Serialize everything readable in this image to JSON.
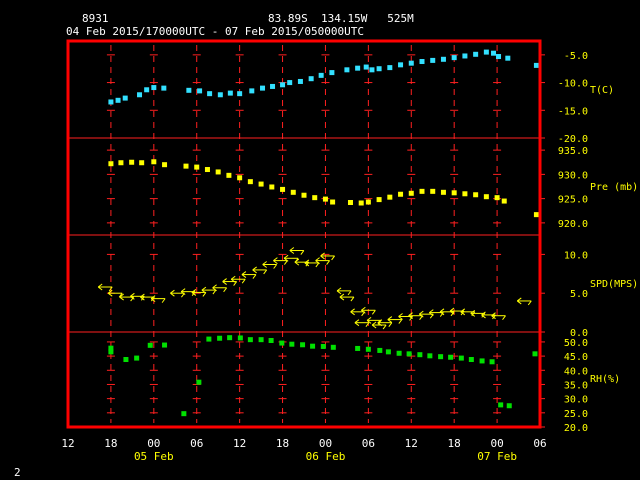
{
  "header": {
    "station_id": "8931",
    "location": "83.89S  134.15W   525M",
    "time_range": "04 Feb 2015/170000UTC - 07 Feb 2015/050000UTC"
  },
  "footer": {
    "page_number": "2"
  },
  "colors": {
    "frame": "#ff0000",
    "grid": "#ff2020",
    "axis_text": "#ffff00",
    "header_text": "#ffffff",
    "temperature": "#33e0ff",
    "pressure": "#ffff00",
    "wind": "#ffff00",
    "rh": "#00e000"
  },
  "chart_data": {
    "type": "scatter",
    "x_axis": {
      "unit": "hours since 05 Feb 00 UTC",
      "range": [
        -12,
        54
      ],
      "tick_hours": [
        -12,
        -6,
        0,
        6,
        12,
        18,
        24,
        30,
        36,
        42,
        48,
        54
      ],
      "tick_labels": [
        "12",
        "18",
        "00",
        "06",
        "12",
        "18",
        "00",
        "06",
        "12",
        "18",
        "00",
        "06"
      ],
      "date_labels": [
        {
          "hour": 0,
          "label": "05 Feb"
        },
        {
          "hour": 24,
          "label": "06 Feb"
        },
        {
          "hour": 48,
          "label": "07 Feb"
        }
      ]
    },
    "panels": [
      {
        "id": "temperature",
        "label": "T(C)",
        "range": [
          -20,
          -2.5
        ],
        "ticks": [
          {
            "v": -5,
            "label": "-5.0"
          },
          {
            "v": -10,
            "label": "-10.0"
          },
          {
            "v": -15,
            "label": "-15.0"
          },
          {
            "v": -20,
            "label": "-20.0"
          }
        ],
        "points": [
          [
            -6,
            -13.5
          ],
          [
            -5,
            -13.2
          ],
          [
            -4,
            -12.8
          ],
          [
            -2,
            -12.2
          ],
          [
            -1,
            -11.3
          ],
          [
            0,
            -10.9
          ],
          [
            1.4,
            -11.0
          ],
          [
            4.9,
            -11.4
          ],
          [
            6.4,
            -11.5
          ],
          [
            7.8,
            -12.0
          ],
          [
            9.3,
            -12.2
          ],
          [
            10.7,
            -11.9
          ],
          [
            12,
            -12.0
          ],
          [
            13.7,
            -11.5
          ],
          [
            15.2,
            -11.0
          ],
          [
            16.6,
            -10.7
          ],
          [
            18,
            -10.4
          ],
          [
            19,
            -10.0
          ],
          [
            20.5,
            -9.8
          ],
          [
            22,
            -9.3
          ],
          [
            23.4,
            -8.7
          ],
          [
            24.9,
            -8.2
          ],
          [
            27,
            -7.7
          ],
          [
            28.5,
            -7.4
          ],
          [
            29.7,
            -7.2
          ],
          [
            30.5,
            -7.7
          ],
          [
            31.5,
            -7.5
          ],
          [
            33,
            -7.3
          ],
          [
            34.5,
            -6.8
          ],
          [
            36,
            -6.5
          ],
          [
            37.5,
            -6.2
          ],
          [
            39,
            -6.0
          ],
          [
            40.5,
            -5.8
          ],
          [
            42,
            -5.5
          ],
          [
            43.5,
            -5.2
          ],
          [
            45,
            -4.9
          ],
          [
            46.5,
            -4.5
          ],
          [
            47.5,
            -4.7
          ],
          [
            48.2,
            -5.3
          ],
          [
            49.5,
            -5.6
          ],
          [
            53.5,
            -6.9
          ]
        ]
      },
      {
        "id": "pressure",
        "label": "Pre (mb)",
        "range": [
          917.5,
          937.5
        ],
        "ticks": [
          {
            "v": 935,
            "label": "935.0"
          },
          {
            "v": 930,
            "label": "930.0"
          },
          {
            "v": 925,
            "label": "925.0"
          },
          {
            "v": 920,
            "label": "920.0"
          }
        ],
        "points": [
          [
            -6,
            932.2
          ],
          [
            -4.6,
            932.4
          ],
          [
            -3.1,
            932.5
          ],
          [
            -1.7,
            932.4
          ],
          [
            0,
            932.6
          ],
          [
            1.5,
            932.0
          ],
          [
            4.5,
            931.7
          ],
          [
            6,
            931.5
          ],
          [
            7.5,
            931.0
          ],
          [
            9,
            930.5
          ],
          [
            10.5,
            929.8
          ],
          [
            12,
            929.3
          ],
          [
            13.5,
            928.5
          ],
          [
            15,
            928.0
          ],
          [
            16.5,
            927.4
          ],
          [
            18,
            926.9
          ],
          [
            19.5,
            926.3
          ],
          [
            21,
            925.7
          ],
          [
            22.5,
            925.2
          ],
          [
            24,
            924.9
          ],
          [
            25,
            924.3
          ],
          [
            27.5,
            924.2
          ],
          [
            29,
            924.1
          ],
          [
            30,
            924.3
          ],
          [
            31.5,
            924.8
          ],
          [
            33,
            925.3
          ],
          [
            34.5,
            925.9
          ],
          [
            36,
            926.1
          ],
          [
            37.5,
            926.5
          ],
          [
            39,
            926.5
          ],
          [
            40.5,
            926.3
          ],
          [
            42,
            926.2
          ],
          [
            43.5,
            926.0
          ],
          [
            45,
            925.8
          ],
          [
            46.5,
            925.4
          ],
          [
            48,
            925.2
          ],
          [
            49,
            924.5
          ],
          [
            53.5,
            921.7
          ]
        ]
      },
      {
        "id": "wind",
        "label": "SPD(MPS)",
        "range": [
          0,
          12.5
        ],
        "ticks": [
          {
            "v": 10,
            "label": "10.0"
          },
          {
            "v": 5,
            "label": "5.0"
          },
          {
            "v": 0,
            "label": "0.0"
          }
        ],
        "points": [
          [
            -6.8,
            5.8
          ],
          [
            -5.4,
            5.0
          ],
          [
            -3.8,
            4.5
          ],
          [
            -2.3,
            4.6
          ],
          [
            -0.9,
            4.5
          ],
          [
            0.6,
            4.3
          ],
          [
            3.3,
            5.0
          ],
          [
            4.8,
            5.2
          ],
          [
            6.3,
            5.1
          ],
          [
            7.7,
            5.4
          ],
          [
            9.2,
            5.7
          ],
          [
            10.6,
            6.5
          ],
          [
            11.8,
            6.8
          ],
          [
            13.3,
            7.4
          ],
          [
            14.8,
            8.0
          ],
          [
            16.2,
            8.7
          ],
          [
            17.7,
            9.2
          ],
          [
            19.2,
            9.5
          ],
          [
            20,
            10.5
          ],
          [
            20.7,
            9.0
          ],
          [
            22.1,
            8.9
          ],
          [
            23.6,
            9.2
          ],
          [
            24.3,
            9.8
          ],
          [
            26.6,
            5.3
          ],
          [
            27,
            4.5
          ],
          [
            28.5,
            2.6
          ],
          [
            29.1,
            1.2
          ],
          [
            30,
            2.8
          ],
          [
            30.8,
            1.5
          ],
          [
            31.5,
            0.9
          ],
          [
            32.3,
            1.2
          ],
          [
            33.7,
            1.6
          ],
          [
            35.2,
            2.0
          ],
          [
            36.6,
            2.1
          ],
          [
            38.1,
            2.3
          ],
          [
            39.5,
            2.5
          ],
          [
            41,
            2.6
          ],
          [
            42.4,
            2.7
          ],
          [
            43.9,
            2.6
          ],
          [
            45.3,
            2.4
          ],
          [
            46.8,
            2.2
          ],
          [
            48.2,
            2.1
          ],
          [
            51.8,
            4.0
          ]
        ]
      },
      {
        "id": "rh",
        "label": "RH(%)",
        "range": [
          20,
          53.5
        ],
        "ticks": [
          {
            "v": 50,
            "label": "50.0"
          },
          {
            "v": 45,
            "label": "45.0"
          },
          {
            "v": 40,
            "label": "40.0"
          },
          {
            "v": 35,
            "label": "35.0"
          },
          {
            "v": 30,
            "label": "30.0"
          },
          {
            "v": 25,
            "label": "25.0"
          },
          {
            "v": 20,
            "label": "20.0"
          }
        ],
        "points": [
          [
            -6,
            47.8
          ],
          [
            -6,
            46.5
          ],
          [
            -3.9,
            43.8
          ],
          [
            -2.4,
            44.3
          ],
          [
            -0.5,
            48.8
          ],
          [
            1.5,
            48.9
          ],
          [
            4.2,
            24.7
          ],
          [
            6.3,
            35.8
          ],
          [
            7.7,
            51.0
          ],
          [
            9.2,
            51.3
          ],
          [
            10.6,
            51.5
          ],
          [
            12.1,
            51.4
          ],
          [
            13.5,
            50.8
          ],
          [
            15,
            50.8
          ],
          [
            16.4,
            50.5
          ],
          [
            17.9,
            49.6
          ],
          [
            19.3,
            49.2
          ],
          [
            20.8,
            49.0
          ],
          [
            22.2,
            48.5
          ],
          [
            23.7,
            48.4
          ],
          [
            25.1,
            48.1
          ],
          [
            28.5,
            47.7
          ],
          [
            30,
            47.4
          ],
          [
            31.6,
            47.0
          ],
          [
            32.8,
            46.5
          ],
          [
            34.3,
            46.0
          ],
          [
            35.7,
            45.8
          ],
          [
            37.2,
            45.5
          ],
          [
            38.6,
            45.1
          ],
          [
            40.1,
            44.8
          ],
          [
            41.5,
            44.6
          ],
          [
            43,
            44.3
          ],
          [
            44.4,
            43.8
          ],
          [
            45.9,
            43.3
          ],
          [
            47.3,
            43.0
          ],
          [
            48.5,
            27.8
          ],
          [
            49.7,
            27.5
          ],
          [
            53.3,
            45.8
          ]
        ]
      }
    ]
  }
}
